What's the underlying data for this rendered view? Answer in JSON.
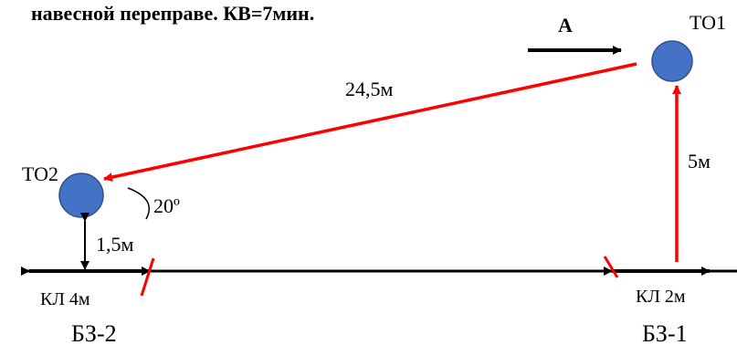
{
  "header": {
    "text": "навесной переправе. КВ=7мин."
  },
  "labels": {
    "direction": "A",
    "to1": "ТО1",
    "to2": "ТО2",
    "distance_main": "24,5м",
    "height_to1": "5м",
    "angle": "20º",
    "height_to2": "1,5м",
    "kl_left": "КЛ 4м",
    "kl_right": "КЛ 2м",
    "bz2": "БЗ-2",
    "bz1": "БЗ-1"
  },
  "colors": {
    "node_fill": "#4472c4",
    "node_stroke": "#2f528f",
    "red_line": "#ff0000",
    "black_line": "#000000"
  }
}
